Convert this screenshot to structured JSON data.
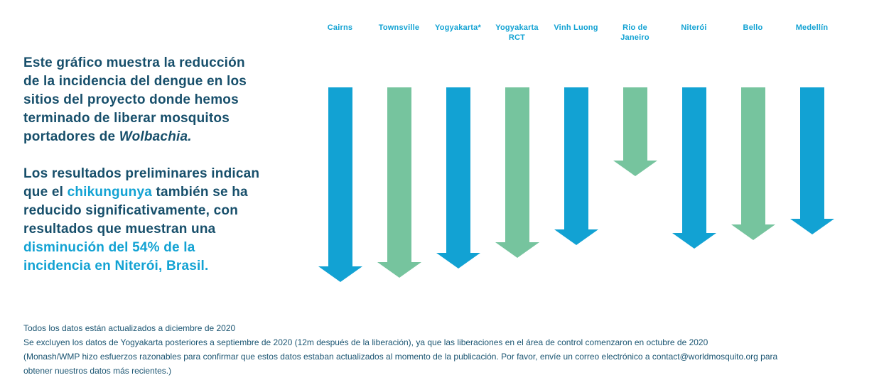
{
  "colors": {
    "navy_text": "#174f6b",
    "accent_blue": "#12a2d3",
    "arrow_green": "#76c49e",
    "background": "#ffffff"
  },
  "intro": {
    "p1": {
      "l1": "Este gráfico muestra la reducción",
      "l2": "de la incidencia del dengue en los",
      "l3": "sitios del proyecto donde hemos",
      "l4": "terminado de liberar mosquitos",
      "l5a": "portadores de ",
      "l5b": "Wolbachia."
    },
    "p2": {
      "l1": "Los resultados preliminares indican",
      "l2a": "que el ",
      "l2b": "chikungunya",
      "l2c": " también se ha",
      "l3": "reducido significativamente, con",
      "l4": "resultados que muestran una",
      "l5": "disminución del 54% de la",
      "l6": "incidencia en Niterói, Brasil."
    }
  },
  "chart_data": {
    "type": "bar",
    "style": "downward-arrows",
    "title": "",
    "xlabel": "",
    "ylabel": "",
    "legend": "none",
    "axis_shown": false,
    "categories": [
      "Cairns",
      "Townsville",
      "Yogyakarta*",
      "Yogyakarta RCT",
      "Vinh Luong",
      "Rio de Janeiro",
      "Niterói",
      "Bello",
      "Medellín"
    ],
    "label_lines": [
      [
        "Cairns"
      ],
      [
        "Townsville"
      ],
      [
        "Yogyakarta*"
      ],
      [
        "Yogyakarta",
        "RCT"
      ],
      [
        "Vinh Luong"
      ],
      [
        "Rio de",
        "Janeiro"
      ],
      [
        "Niterói"
      ],
      [
        "Bello"
      ],
      [
        "Medellín"
      ]
    ],
    "values": [
      274,
      268,
      255,
      240,
      222,
      125,
      227,
      215,
      207
    ],
    "value_unit": "arrow length in px (magnitude of dengue-incidence reduction; no numeric axis shown)",
    "colors": [
      "#12a2d3",
      "#76c49e",
      "#12a2d3",
      "#76c49e",
      "#12a2d3",
      "#76c49e",
      "#12a2d3",
      "#76c49e",
      "#12a2d3"
    ]
  },
  "footnotes": {
    "l1": "Todos los datos están actualizados a diciembre de 2020",
    "l2": "Se excluyen los datos de Yogyakarta posteriores a septiembre de 2020 (12m después de la liberación), ya que las liberaciones en el área de control comenzaron en octubre de 2020",
    "l3": "(Monash/WMP hizo esfuerzos razonables para confirmar que estos datos estaban actualizados al momento de la publicación. Por favor, envíe un correo electrónico a contact@worldmosquito.org para",
    "l4": "obtener nuestros datos más recientes.)"
  }
}
